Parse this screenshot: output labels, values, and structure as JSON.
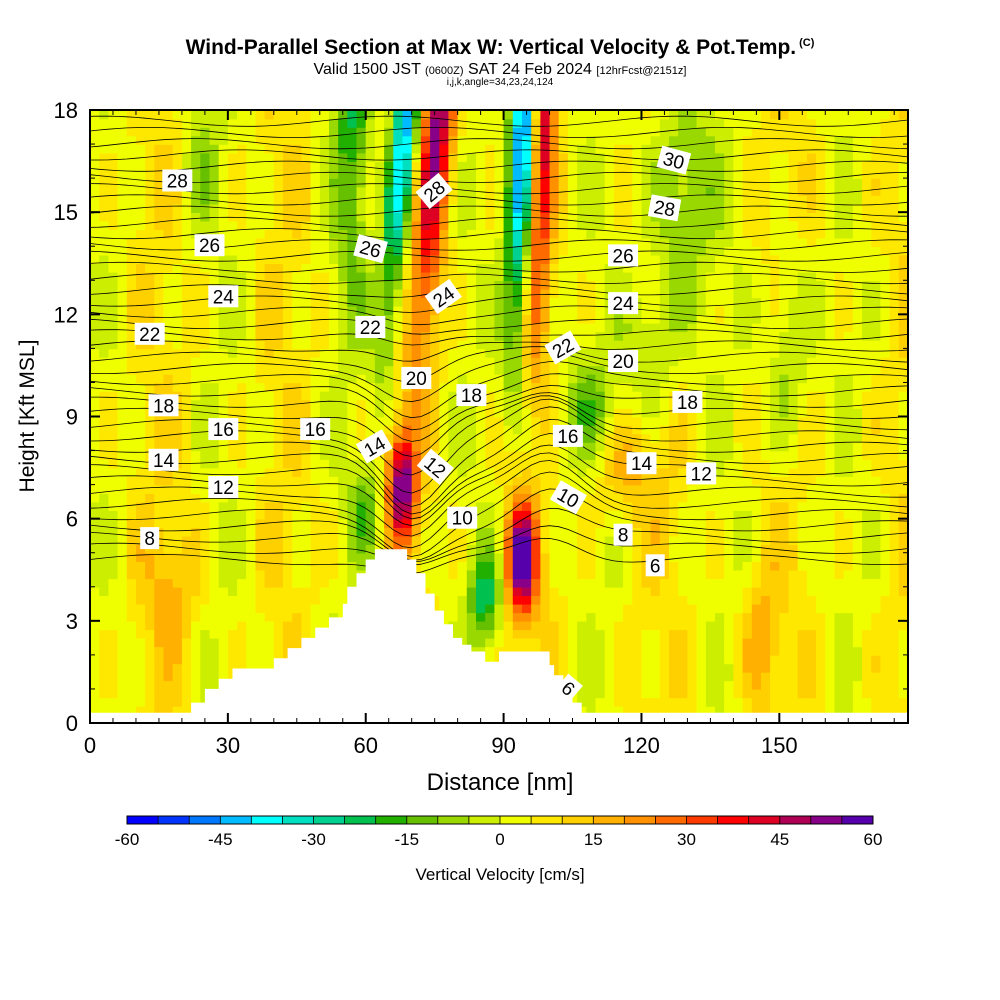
{
  "title": {
    "main": "Wind-Parallel Section at Max W: Vertical Velocity & Pot.Temp.",
    "copyright": "(C)",
    "valid_prefix": "Valid 1500 JST",
    "valid_utc": "(0600Z)",
    "valid_date": "SAT 24 Feb 2024",
    "forecast": "[12hrFcst@2151z]",
    "indices": "i,j,k,angle=34,23,24,124"
  },
  "chart_data": {
    "type": "heatmap",
    "xlabel": "Distance [nm]",
    "ylabel": "Height [Kft MSL]",
    "xlim": [
      0,
      178
    ],
    "ylim": [
      0,
      18
    ],
    "x_ticks": [
      0,
      30,
      60,
      90,
      120,
      150
    ],
    "x_tick_labels": [
      "0",
      "30",
      "60",
      "90",
      "120",
      "150"
    ],
    "y_ticks": [
      0,
      3,
      6,
      9,
      12,
      15,
      18
    ],
    "y_tick_labels": [
      "0",
      "3",
      "6",
      "9",
      "12",
      "15",
      "18"
    ],
    "colorbar": {
      "label": "Vertical Velocity [cm/s]",
      "min": -60,
      "max": 60,
      "tick_values": [
        -60,
        -45,
        -30,
        -15,
        0,
        15,
        30,
        45,
        60
      ],
      "tick_labels": [
        "-60",
        "-45",
        "-30",
        "-15",
        "0",
        "15",
        "30",
        "45",
        "60"
      ],
      "colors": [
        "#0000ff",
        "#0033ff",
        "#0077ff",
        "#00bbff",
        "#00ffff",
        "#00e0c0",
        "#00d090",
        "#00c050",
        "#22b000",
        "#66c000",
        "#99d800",
        "#ccee00",
        "#f0ff00",
        "#ffe800",
        "#ffd000",
        "#ffb000",
        "#ff9000",
        "#ff6a00",
        "#ff3a00",
        "#ff0000",
        "#dd0022",
        "#b00055",
        "#880088",
        "#5500aa"
      ]
    },
    "terrain_kft": [
      [
        0,
        0.3
      ],
      [
        12,
        0.3
      ],
      [
        20,
        0.3
      ],
      [
        22,
        0.6
      ],
      [
        25,
        1.0
      ],
      [
        28,
        1.3
      ],
      [
        31,
        1.6
      ],
      [
        34,
        1.6
      ],
      [
        37,
        1.6
      ],
      [
        40,
        1.9
      ],
      [
        43,
        2.2
      ],
      [
        46,
        2.5
      ],
      [
        49,
        2.8
      ],
      [
        52,
        3.1
      ],
      [
        55,
        3.5
      ],
      [
        56,
        4.0
      ],
      [
        58,
        4.4
      ],
      [
        60,
        4.8
      ],
      [
        62,
        5.1
      ],
      [
        68,
        5.1
      ],
      [
        69,
        4.8
      ],
      [
        71,
        4.4
      ],
      [
        73,
        3.8
      ],
      [
        75,
        3.3
      ],
      [
        77,
        2.9
      ],
      [
        79,
        2.5
      ],
      [
        81,
        2.3
      ],
      [
        83,
        2.1
      ],
      [
        85,
        2.1
      ],
      [
        86,
        1.8
      ],
      [
        88,
        1.8
      ],
      [
        89,
        2.1
      ],
      [
        99,
        2.1
      ],
      [
        100,
        1.7
      ],
      [
        101,
        1.4
      ],
      [
        103,
        1.0
      ],
      [
        105,
        0.6
      ],
      [
        107,
        0.3
      ],
      [
        110,
        0.3
      ],
      [
        178,
        0.3
      ]
    ],
    "theta_labels": [
      {
        "x": 19,
        "y": 15.9,
        "text": "28",
        "rot": 0
      },
      {
        "x": 26,
        "y": 14.0,
        "text": "26",
        "rot": 0
      },
      {
        "x": 29,
        "y": 12.5,
        "text": "24",
        "rot": 0
      },
      {
        "x": 13,
        "y": 11.4,
        "text": "22",
        "rot": 0
      },
      {
        "x": 16,
        "y": 9.3,
        "text": "18",
        "rot": 0
      },
      {
        "x": 29,
        "y": 8.6,
        "text": "16",
        "rot": 0
      },
      {
        "x": 49,
        "y": 8.6,
        "text": "16",
        "rot": 0
      },
      {
        "x": 16,
        "y": 7.7,
        "text": "14",
        "rot": 0
      },
      {
        "x": 29,
        "y": 6.9,
        "text": "12",
        "rot": 0
      },
      {
        "x": 13,
        "y": 5.4,
        "text": "8",
        "rot": 0
      },
      {
        "x": 75,
        "y": 15.6,
        "text": "28",
        "rot": -40
      },
      {
        "x": 61,
        "y": 13.9,
        "text": "26",
        "rot": 15
      },
      {
        "x": 77,
        "y": 12.5,
        "text": "24",
        "rot": -35
      },
      {
        "x": 61,
        "y": 11.6,
        "text": "22",
        "rot": 0
      },
      {
        "x": 71,
        "y": 10.1,
        "text": "20",
        "rot": 0
      },
      {
        "x": 83,
        "y": 9.6,
        "text": "18",
        "rot": 0
      },
      {
        "x": 62,
        "y": 8.1,
        "text": "14",
        "rot": -30
      },
      {
        "x": 75,
        "y": 7.5,
        "text": "12",
        "rot": 40
      },
      {
        "x": 81,
        "y": 6.0,
        "text": "10",
        "rot": 0
      },
      {
        "x": 104,
        "y": 6.6,
        "text": "10",
        "rot": 30
      },
      {
        "x": 103,
        "y": 11.0,
        "text": "22",
        "rot": -30
      },
      {
        "x": 104,
        "y": 8.4,
        "text": "16",
        "rot": 0
      },
      {
        "x": 116,
        "y": 5.5,
        "text": "8",
        "rot": 0
      },
      {
        "x": 123,
        "y": 4.6,
        "text": "6",
        "rot": 0
      },
      {
        "x": 104,
        "y": 1.0,
        "text": "6",
        "rot": 40
      },
      {
        "x": 127,
        "y": 16.5,
        "text": "30",
        "rot": 15
      },
      {
        "x": 125,
        "y": 15.1,
        "text": "28",
        "rot": 10
      },
      {
        "x": 116,
        "y": 13.7,
        "text": "26",
        "rot": 0
      },
      {
        "x": 116,
        "y": 12.3,
        "text": "24",
        "rot": 0
      },
      {
        "x": 116,
        "y": 10.6,
        "text": "20",
        "rot": 0
      },
      {
        "x": 130,
        "y": 9.4,
        "text": "18",
        "rot": 0
      },
      {
        "x": 120,
        "y": 7.6,
        "text": "14",
        "rot": 0
      },
      {
        "x": 133,
        "y": 7.3,
        "text": "12",
        "rot": 0
      }
    ]
  }
}
